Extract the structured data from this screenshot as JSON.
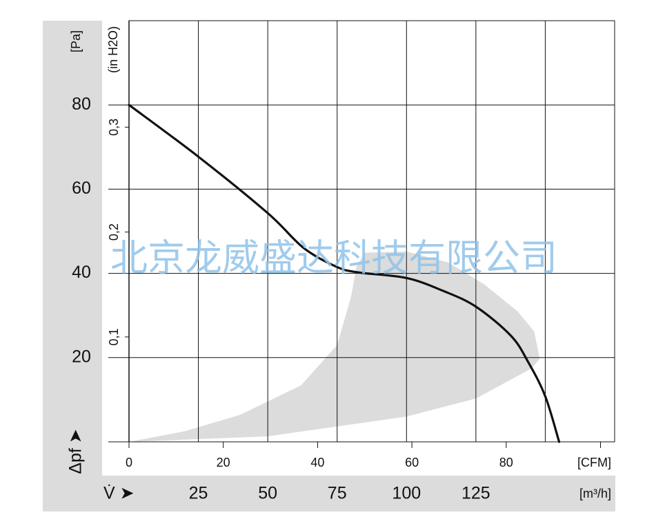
{
  "chart_data": {
    "type": "line",
    "y_label": "[Pa]",
    "y2_label": "(in H2O)",
    "y_axis_title": "Δpf ➤",
    "x_axis_title": "V̇ ➤",
    "x_label": "[m³/h]",
    "x2_label": "[CFM]",
    "watermark": "北京龙威盛达科技有限公司",
    "xlim": [
      0,
      175
    ],
    "ylim": [
      0,
      100
    ],
    "x2lim": [
      0,
      103
    ],
    "y2lim": [
      0,
      0.4015
    ],
    "xticks": [
      {
        "value": 0,
        "label": null
      },
      25,
      50,
      75,
      100,
      125,
      {
        "value": 150,
        "label": null
      }
    ],
    "yticks": [
      {
        "value": 0,
        "label": null
      },
      20,
      40,
      60,
      80
    ],
    "x2ticks": [
      0,
      20,
      40,
      60,
      80,
      {
        "value": 100,
        "label": null
      }
    ],
    "y2ticks": [
      {
        "value": 0.1,
        "label": "0,1"
      },
      {
        "value": 0.2,
        "label": "0,2"
      },
      {
        "value": 0.3,
        "label": "0,3"
      }
    ],
    "grid": true,
    "series": [
      {
        "name": null,
        "color": "#111111",
        "x": [
          0,
          25,
          50,
          63,
          75,
          83,
          100,
          113,
          125,
          137.6,
          143.8,
          150,
          155
        ],
        "values": [
          80,
          67.7,
          54.3,
          46,
          41.5,
          40.2,
          38.9,
          35.9,
          32.1,
          25.2,
          19,
          10.8,
          0
        ]
      }
    ],
    "region": {
      "color": "#dcdcdc",
      "x": [
        0,
        50,
        100,
        125,
        145,
        148,
        146,
        140,
        128,
        115,
        100,
        85,
        82,
        80,
        75,
        62,
        40,
        20
      ],
      "y": [
        0,
        1.3,
        6,
        10.3,
        17.4,
        19.7,
        26.2,
        31,
        37.4,
        42.6,
        45.2,
        44.9,
        41.7,
        34.4,
        23,
        13.4,
        6.4,
        2.5
      ]
    }
  }
}
